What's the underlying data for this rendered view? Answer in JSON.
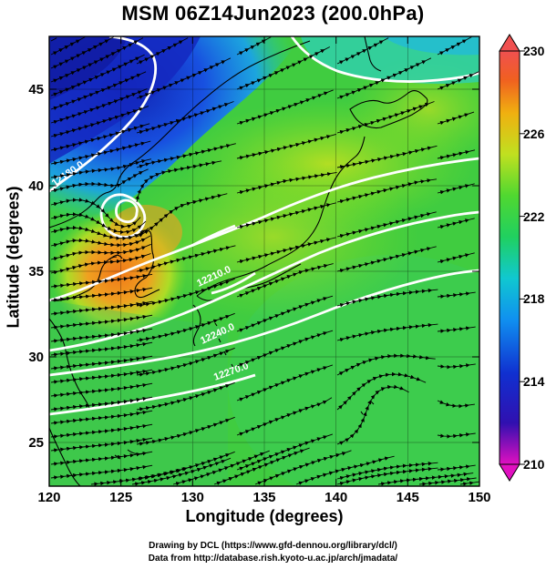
{
  "title": "MSM 06Z14Jun2023 (200.0hPa)",
  "x_axis": {
    "label": "Longitude (degrees)",
    "ticks": [
      "120",
      "125",
      "130",
      "135",
      "140",
      "145",
      "150"
    ],
    "range": [
      120,
      150
    ]
  },
  "y_axis": {
    "label": "Latitude  (degrees)",
    "ticks": [
      "25",
      "30",
      "35",
      "40",
      "45"
    ],
    "range": [
      22.4,
      47.6
    ]
  },
  "colorbar": {
    "ticks": [
      "230",
      "226",
      "222",
      "218",
      "214",
      "210"
    ],
    "range": [
      210,
      230
    ],
    "colors": [
      "#e010c0",
      "#3010b0",
      "#1030d0",
      "#10a0ff",
      "#20d8a0",
      "#30d030",
      "#90e020",
      "#d0e020",
      "#f0a010",
      "#f06020",
      "#f05050"
    ]
  },
  "contour_labels": [
    "12180.0",
    "12210.0",
    "12240.0",
    "12270.0"
  ],
  "credits": {
    "line1": "Drawing by DCL (https://www.gfd-dennou.org/library/dcl/)",
    "line2": "Data from http://database.rish.kyoto-u.ac.jp/arch/jmadata/"
  }
}
